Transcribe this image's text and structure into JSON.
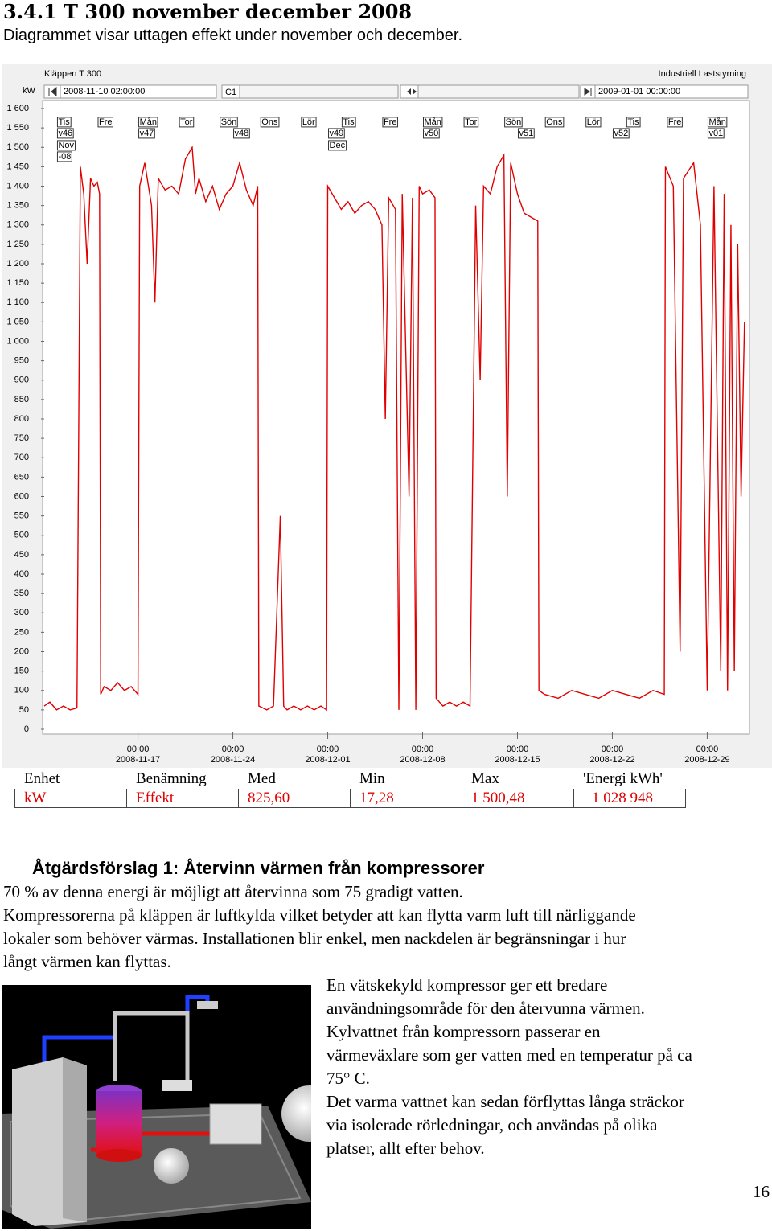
{
  "header": {
    "title": "3.4.1 T 300 november december 2008",
    "subtitle": "Diagrammet visar uttagen effekt under november och december."
  },
  "chart_data": {
    "type": "line",
    "title": "Kläppen T 300",
    "brand": "Industriell Laststyrning",
    "ylabel": "kW",
    "cursor_label": "C1",
    "color": "#e00000",
    "grid": false,
    "xlim": [
      "2008-11-10 02:00:00",
      "2009-01-01 00:00:00"
    ],
    "ylim": [
      0,
      1600
    ],
    "yticks": [
      0,
      50,
      100,
      150,
      200,
      250,
      300,
      350,
      400,
      450,
      500,
      550,
      600,
      650,
      700,
      750,
      800,
      850,
      900,
      950,
      {
        "value": 1000,
        "label": "1 000"
      },
      {
        "value": 1050,
        "label": "1 050"
      },
      {
        "value": 1100,
        "label": "1 100"
      },
      {
        "value": 1150,
        "label": "1 150"
      },
      {
        "value": 1200,
        "label": "1 200"
      },
      {
        "value": 1250,
        "label": "1 250"
      },
      {
        "value": 1300,
        "label": "1 300"
      },
      {
        "value": 1350,
        "label": "1 350"
      },
      {
        "value": 1400,
        "label": "1 400"
      },
      {
        "value": 1450,
        "label": "1 450"
      },
      {
        "value": 1500,
        "label": "1 500"
      },
      {
        "value": 1550,
        "label": "1 550"
      },
      {
        "value": 1600,
        "label": "1 600"
      }
    ],
    "xticks": [
      {
        "value": "2008-11-17 00:00",
        "label": [
          "00:00",
          "2008-11-17"
        ]
      },
      {
        "value": "2008-11-24 00:00",
        "label": [
          "00:00",
          "2008-11-24"
        ]
      },
      {
        "value": "2008-12-01 00:00",
        "label": [
          "00:00",
          "2008-12-01"
        ]
      },
      {
        "value": "2008-12-08 00:00",
        "label": [
          "00:00",
          "2008-12-08"
        ]
      },
      {
        "value": "2008-12-15 00:00",
        "label": [
          "00:00",
          "2008-12-15"
        ]
      },
      {
        "value": "2008-12-22 00:00",
        "label": [
          "00:00",
          "2008-12-22"
        ]
      },
      {
        "value": "2008-12-29 00:00",
        "label": [
          "00:00",
          "2008-12-29"
        ]
      }
    ],
    "day_markers": [
      {
        "x": "2008-11-11 00:00",
        "label": "Tis"
      },
      {
        "x": "2008-11-14 00:00",
        "label": "Fre"
      },
      {
        "x": "2008-11-17 00:00",
        "label": "Mån"
      },
      {
        "x": "2008-11-20 00:00",
        "label": "Tor"
      },
      {
        "x": "2008-11-23 00:00",
        "label": "Sön"
      },
      {
        "x": "2008-11-26 00:00",
        "label": "Ons"
      },
      {
        "x": "2008-11-29 00:00",
        "label": "Lör"
      },
      {
        "x": "2008-12-02 00:00",
        "label": "Tis"
      },
      {
        "x": "2008-12-05 00:00",
        "label": "Fre"
      },
      {
        "x": "2008-12-08 00:00",
        "label": "Mån"
      },
      {
        "x": "2008-12-11 00:00",
        "label": "Tor"
      },
      {
        "x": "2008-12-14 00:00",
        "label": "Sön"
      },
      {
        "x": "2008-12-17 00:00",
        "label": "Ons"
      },
      {
        "x": "2008-12-20 00:00",
        "label": "Lör"
      },
      {
        "x": "2008-12-23 00:00",
        "label": "Tis"
      },
      {
        "x": "2008-12-26 00:00",
        "label": "Fre"
      },
      {
        "x": "2008-12-29 00:00",
        "label": "Mån"
      }
    ],
    "week_markers": [
      {
        "x": "2008-11-11 00:00",
        "label": "v46"
      },
      {
        "x": "2008-11-17 00:00",
        "label": "v47"
      },
      {
        "x": "2008-11-24 00:00",
        "label": "v48"
      },
      {
        "x": "2008-12-01 00:00",
        "label": "v49"
      },
      {
        "x": "2008-12-08 00:00",
        "label": "v50"
      },
      {
        "x": "2008-12-15 00:00",
        "label": "v51"
      },
      {
        "x": "2008-12-22 00:00",
        "label": "v52"
      },
      {
        "x": "2008-12-29 00:00",
        "label": "v01"
      }
    ],
    "month_markers": [
      {
        "x": "2008-11-11 00:00",
        "label": [
          "Nov",
          "-08"
        ]
      },
      {
        "x": "2008-12-01 00:00",
        "label": [
          "Dec"
        ]
      }
    ],
    "x": [
      "2008-11-10 02:00",
      "2008-11-10 12:00",
      "2008-11-11 00:00",
      "2008-11-11 12:00",
      "2008-11-12 00:00",
      "2008-11-12 12:00",
      "2008-11-12 18:00",
      "2008-11-13 00:00",
      "2008-11-13 06:00",
      "2008-11-13 12:00",
      "2008-11-13 18:00",
      "2008-11-14 00:00",
      "2008-11-14 04:00",
      "2008-11-14 06:00",
      "2008-11-14 12:00",
      "2008-11-15 00:00",
      "2008-11-15 12:00",
      "2008-11-16 00:00",
      "2008-11-16 12:00",
      "2008-11-17 00:00",
      "2008-11-17 03:00",
      "2008-11-17 12:00",
      "2008-11-18 00:00",
      "2008-11-18 06:00",
      "2008-11-18 12:00",
      "2008-11-19 00:00",
      "2008-11-19 12:00",
      "2008-11-20 00:00",
      "2008-11-20 12:00",
      "2008-11-21 00:00",
      "2008-11-21 06:00",
      "2008-11-21 12:00",
      "2008-11-22 00:00",
      "2008-11-22 12:00",
      "2008-11-23 00:00",
      "2008-11-23 12:00",
      "2008-11-24 00:00",
      "2008-11-24 12:00",
      "2008-11-25 00:00",
      "2008-11-25 12:00",
      "2008-11-25 20:00",
      "2008-11-25 22:00",
      "2008-11-26 12:00",
      "2008-11-27 00:00",
      "2008-11-27 12:00",
      "2008-11-27 18:00",
      "2008-11-28 00:00",
      "2008-11-28 12:00",
      "2008-11-29 00:00",
      "2008-11-29 12:00",
      "2008-11-30 00:00",
      "2008-11-30 12:00",
      "2008-11-30 22:00",
      "2008-12-01 00:00",
      "2008-12-01 12:00",
      "2008-12-02 00:00",
      "2008-12-02 12:00",
      "2008-12-03 00:00",
      "2008-12-03 12:00",
      "2008-12-04 00:00",
      "2008-12-04 12:00",
      "2008-12-05 00:00",
      "2008-12-05 06:00",
      "2008-12-05 12:00",
      "2008-12-06 00:00",
      "2008-12-06 06:00",
      "2008-12-06 12:00",
      "2008-12-07 00:00",
      "2008-12-07 06:00",
      "2008-12-07 12:00",
      "2008-12-07 18:00",
      "2008-12-08 00:00",
      "2008-12-08 12:00",
      "2008-12-08 22:00",
      "2008-12-09 00:00",
      "2008-12-09 12:00",
      "2008-12-10 00:00",
      "2008-12-10 12:00",
      "2008-12-11 00:00",
      "2008-12-11 12:00",
      "2008-12-11 22:00",
      "2008-12-12 06:00",
      "2008-12-12 12:00",
      "2008-12-13 00:00",
      "2008-12-13 12:00",
      "2008-12-14 00:00",
      "2008-12-14 06:00",
      "2008-12-14 12:00",
      "2008-12-15 00:00",
      "2008-12-15 12:00",
      "2008-12-16 00:00",
      "2008-12-16 12:00",
      "2008-12-16 14:00",
      "2008-12-17 00:00",
      "2008-12-18 00:00",
      "2008-12-19 00:00",
      "2008-12-20 00:00",
      "2008-12-21 00:00",
      "2008-12-22 00:00",
      "2008-12-23 00:00",
      "2008-12-24 00:00",
      "2008-12-25 00:00",
      "2008-12-25 20:00",
      "2008-12-25 22:00",
      "2008-12-26 12:00",
      "2008-12-27 00:00",
      "2008-12-27 06:00",
      "2008-12-28 00:00",
      "2008-12-28 12:00",
      "2008-12-29 00:00",
      "2008-12-29 12:00",
      "2008-12-30 00:00",
      "2008-12-30 06:00",
      "2008-12-30 12:00",
      "2008-12-30 18:00",
      "2008-12-31 00:00",
      "2008-12-31 06:00",
      "2008-12-31 12:00",
      "2008-12-31 18:00"
    ],
    "values": [
      60,
      70,
      50,
      60,
      50,
      55,
      1450,
      1380,
      1200,
      1420,
      1400,
      1410,
      1380,
      90,
      110,
      100,
      120,
      100,
      110,
      90,
      1400,
      1460,
      1350,
      1100,
      1420,
      1390,
      1400,
      1380,
      1470,
      1500,
      1380,
      1420,
      1360,
      1400,
      1340,
      1380,
      1400,
      1460,
      1390,
      1350,
      1400,
      60,
      50,
      60,
      550,
      60,
      50,
      60,
      50,
      60,
      50,
      60,
      50,
      1400,
      1370,
      1340,
      1360,
      1330,
      1350,
      1360,
      1340,
      1300,
      800,
      1370,
      1340,
      50,
      1380,
      600,
      1370,
      50,
      1400,
      1380,
      1390,
      1370,
      80,
      60,
      70,
      60,
      70,
      60,
      1350,
      900,
      1400,
      1380,
      1450,
      1480,
      600,
      1460,
      1380,
      1330,
      1320,
      1310,
      100,
      90,
      80,
      100,
      90,
      80,
      100,
      90,
      80,
      100,
      90,
      1450,
      1400,
      200,
      1420,
      1460,
      1300,
      100,
      1400,
      150,
      1380,
      100,
      1300,
      150,
      1250,
      600,
      1050
    ]
  },
  "table": {
    "header": [
      "Enhet",
      "Benämning",
      "Med",
      "Min",
      "Max",
      "'Energi kWh'"
    ],
    "rows": [
      [
        "kW",
        "Effekt",
        "825,60",
        "17,28",
        "1 500,48",
        "1 028 948"
      ]
    ]
  },
  "section": {
    "heading": "Åtgärdsförslag 1: Återvinn värmen från kompressorer",
    "lines": [
      "70 % av denna energi är möjligt att återvinna som 75 gradigt vatten.",
      "Kompressorerna på kläppen är luftkylda vilket betyder att kan flytta varm luft till närliggande",
      "lokaler som behöver värmas. Installationen blir enkel, men nackdelen är begränsningar i hur",
      "långt värmen kan flyttas."
    ],
    "side_lines": [
      "En vätskekyld kompressor ger ett bredare",
      "användningsområde för den återvunna värmen.",
      "Kylvattnet från kompressorn passerar en",
      "värmeväxlare som ger vatten med en temperatur på ca",
      "75° C.",
      "Det varma vattnet kan sedan förflyttas långa sträckor",
      "via isolerade rörledningar, och användas på olika",
      "platser, allt efter behov."
    ]
  },
  "page_number": "16"
}
